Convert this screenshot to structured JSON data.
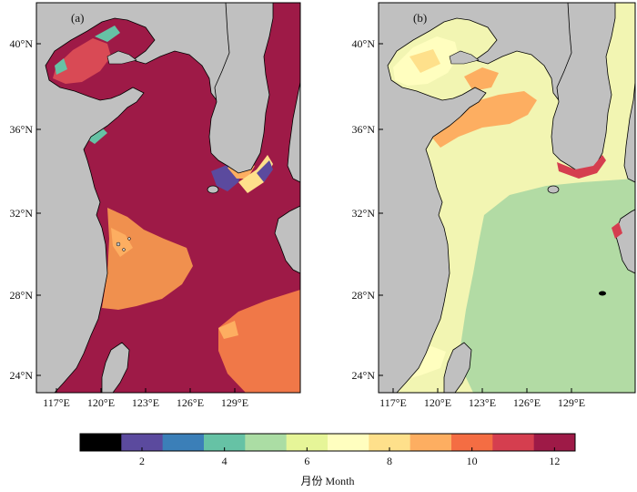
{
  "panels": [
    {
      "label": "(a)",
      "y_ticks": [
        "40°N",
        "36°N",
        "32°N",
        "28°N",
        "24°N"
      ],
      "x_ticks": [
        "117°E",
        "120°E",
        "123°E",
        "126°E",
        "129°E"
      ]
    },
    {
      "label": "(b)",
      "y_ticks": [
        "40°N",
        "36°N",
        "32°N",
        "28°N",
        "24°N"
      ],
      "x_ticks": [
        "117°E",
        "120°E",
        "123°E",
        "126°E",
        "129°E"
      ]
    }
  ],
  "colorbar": {
    "ticks": [
      "2",
      "4",
      "6",
      "8",
      "10",
      "12"
    ],
    "title": "月份 Month",
    "colors": [
      "#000000",
      "#5b4a9e",
      "#3b7fb8",
      "#66c2a5",
      "#abdda4",
      "#e6f598",
      "#fffebf",
      "#fee08b",
      "#fdae61",
      "#f46d43",
      "#d53e4f",
      "#9e1a47"
    ]
  },
  "map_colors": {
    "land": "#c0c0c0",
    "outside": "#ffffff"
  }
}
